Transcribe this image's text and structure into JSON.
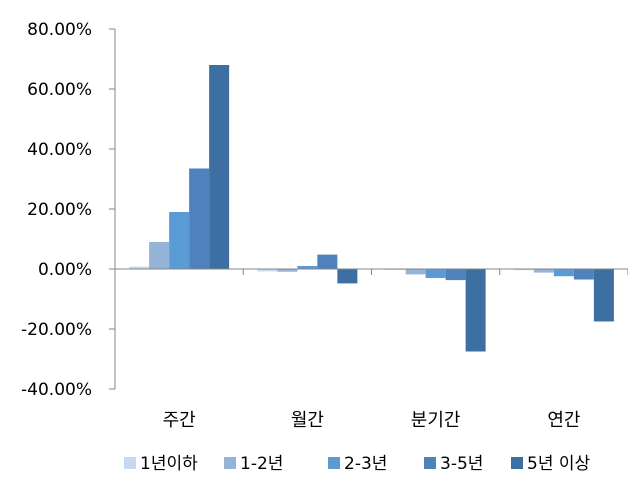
{
  "chart_data": {
    "type": "bar",
    "title": "",
    "xlabel": "",
    "ylabel": "",
    "categories": [
      "주간",
      "월간",
      "분기간",
      "연간"
    ],
    "ylim": [
      -40,
      80
    ],
    "yticks": [
      "80.00%",
      "60.00%",
      "40.00%",
      "20.00%",
      "0.00%",
      "-20.00%",
      "-40.00%"
    ],
    "ytick_values": [
      80,
      60,
      40,
      20,
      0,
      -20,
      -40
    ],
    "grid": false,
    "legend_position": "bottom",
    "series": [
      {
        "name": "1년이하",
        "color": "#c5d9f1",
        "values": [
          0.8,
          -0.8,
          -0.3,
          -0.4
        ]
      },
      {
        "name": "1-2년",
        "color": "#95b3d7",
        "values": [
          9.0,
          -0.9,
          -1.8,
          -1.2
        ]
      },
      {
        "name": "2-3년",
        "color": "#5b9bd5",
        "values": [
          19.0,
          1.0,
          -3.0,
          -2.4
        ]
      },
      {
        "name": "3-5년",
        "color": "#4f81bd",
        "values": [
          33.5,
          4.8,
          -3.7,
          -3.5
        ]
      },
      {
        "name": "5년 이상",
        "color": "#3d6fa3",
        "values": [
          68.0,
          -4.8,
          -27.5,
          -17.5
        ]
      }
    ]
  }
}
